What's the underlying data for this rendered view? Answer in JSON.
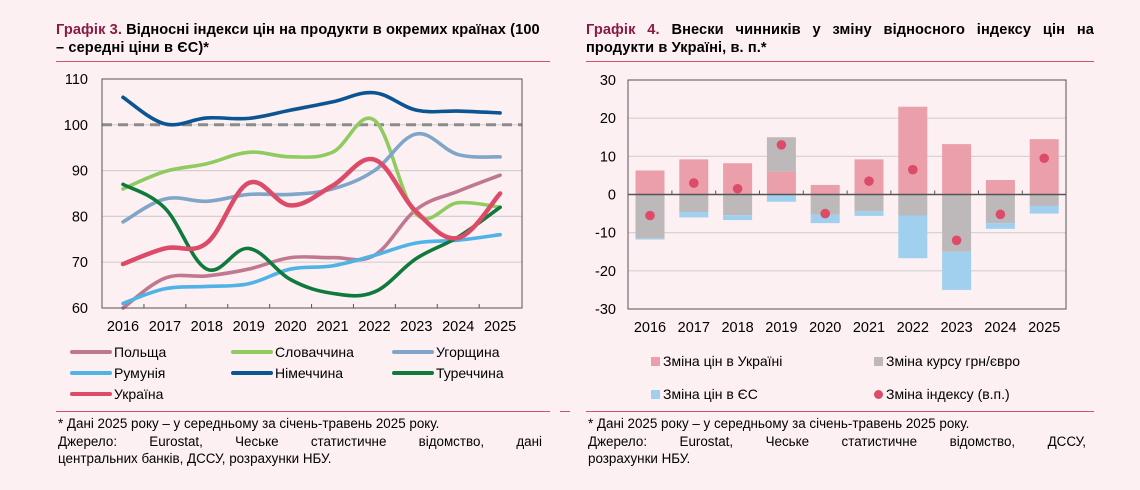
{
  "colors": {
    "title_accent": "#8b1a43",
    "rule": "#d0516a",
    "background": "#fcf0f3"
  },
  "left": {
    "title_num": "Графік 3.",
    "title_text": " Відносні індекси цін на продукти в окремих країнах (100 – середні ціни в ЄС)*",
    "footnote": "* Дані 2025 року – у середньому за січень-травень 2025 року.",
    "source_line1": "Джерело: Eurostat, Чеське статистичне відомство, дані",
    "source_line2": "центральних банків, ДССУ, розрахунки НБУ."
  },
  "right": {
    "title_num": "Графік 4.",
    "title_text": " Внески чинників у зміну відносного індексу цін на продукти в Україні, в. п.*",
    "footnote": "* Дані 2025 року – у середньому за січень-травень 2025 року.",
    "source_line1": "Джерело: Eurostat, Чеське статистичне відомство, ДССУ,",
    "source_line2": "розрахунки НБУ."
  },
  "chart_data": [
    {
      "type": "line",
      "title": "Графік 3. Відносні індекси цін на продукти в окремих країнах (100 – середні ціни в ЄС)*",
      "xlabel": "",
      "ylabel": "",
      "x": [
        "2016",
        "2017",
        "2018",
        "2019",
        "2020",
        "2021",
        "2022",
        "2023",
        "2024",
        "2025"
      ],
      "ylim": [
        60,
        110
      ],
      "yticks": [
        "60",
        "70",
        "80",
        "90",
        "100",
        "110"
      ],
      "grid": true,
      "reference_line": {
        "value": 100,
        "style": "dashed",
        "color": "#8c8c8c"
      },
      "legend_position": "bottom",
      "series": [
        {
          "name": "Польща",
          "color": "#c07890",
          "values": [
            60,
            66.5,
            67,
            68.5,
            71,
            71,
            71.5,
            81.5,
            85.5,
            89
          ]
        },
        {
          "name": "Словаччина",
          "color": "#8fcb5f",
          "values": [
            86,
            89.8,
            91.5,
            94,
            93,
            94,
            101,
            80.5,
            83,
            82
          ]
        },
        {
          "name": "Угорщина",
          "color": "#7fa5c8",
          "values": [
            78.8,
            83.8,
            83.3,
            84.8,
            84.8,
            86,
            90,
            98,
            93.5,
            93
          ]
        },
        {
          "name": "Румунія",
          "color": "#4fb3e6",
          "values": [
            61,
            64.2,
            64.7,
            65.3,
            68.5,
            69.2,
            71.5,
            74.2,
            74.8,
            76
          ]
        },
        {
          "name": "Німеччина",
          "color": "#0b5592",
          "values": [
            106,
            100.2,
            101.5,
            101.4,
            103.2,
            105,
            107,
            103.2,
            103,
            102.6
          ]
        },
        {
          "name": "Туреччина",
          "color": "#0f7a3c",
          "values": [
            87,
            81.8,
            68.5,
            73,
            66.2,
            63.2,
            63.5,
            70.8,
            75.5,
            82
          ]
        },
        {
          "name": "Україна",
          "color": "#dc4b68",
          "values": [
            69.6,
            73,
            74.2,
            87.3,
            82.4,
            86.7,
            92.4,
            81,
            75.3,
            85
          ]
        }
      ]
    },
    {
      "type": "bar",
      "stacked": true,
      "title": "Графік 4. Внески чинників у зміну відносного індексу цін на продукти в Україні, в. п.*",
      "xlabel": "",
      "ylabel": "",
      "categories": [
        "2016",
        "2017",
        "2018",
        "2019",
        "2020",
        "2021",
        "2022",
        "2023",
        "2024",
        "2025"
      ],
      "ylim": [
        -30,
        30
      ],
      "yticks": [
        "-30",
        "-20",
        "-10",
        "0",
        "10",
        "20",
        "30"
      ],
      "grid": true,
      "legend_position": "bottom",
      "series": [
        {
          "name": "Зміна цін в Україні",
          "kind": "bar",
          "color": "#eb9fab",
          "values": [
            6.3,
            9.2,
            8.2,
            6.0,
            2.5,
            9.2,
            23.0,
            13.2,
            3.8,
            14.5
          ]
        },
        {
          "name": "Зміна курсу грн/євро",
          "kind": "bar",
          "color": "#bdb8b9",
          "values": [
            -11.5,
            -4.6,
            -5.4,
            9.0,
            -5.3,
            -4.4,
            -5.5,
            -15.0,
            -7.5,
            -3.0
          ]
        },
        {
          "name": "Зміна цін в ЄС",
          "kind": "bar",
          "color": "#a0d0ee",
          "values": [
            -0.3,
            -1.4,
            -1.3,
            -1.9,
            -2.2,
            -1.2,
            -11.2,
            -10.0,
            -1.5,
            -2.0
          ]
        },
        {
          "name": "Зміна індексу (в.п.)",
          "kind": "dot",
          "color": "#dc4b68",
          "values": [
            -5.5,
            3.0,
            1.5,
            13.0,
            -5.0,
            3.5,
            6.5,
            -12.0,
            -5.2,
            9.5
          ]
        }
      ]
    }
  ]
}
